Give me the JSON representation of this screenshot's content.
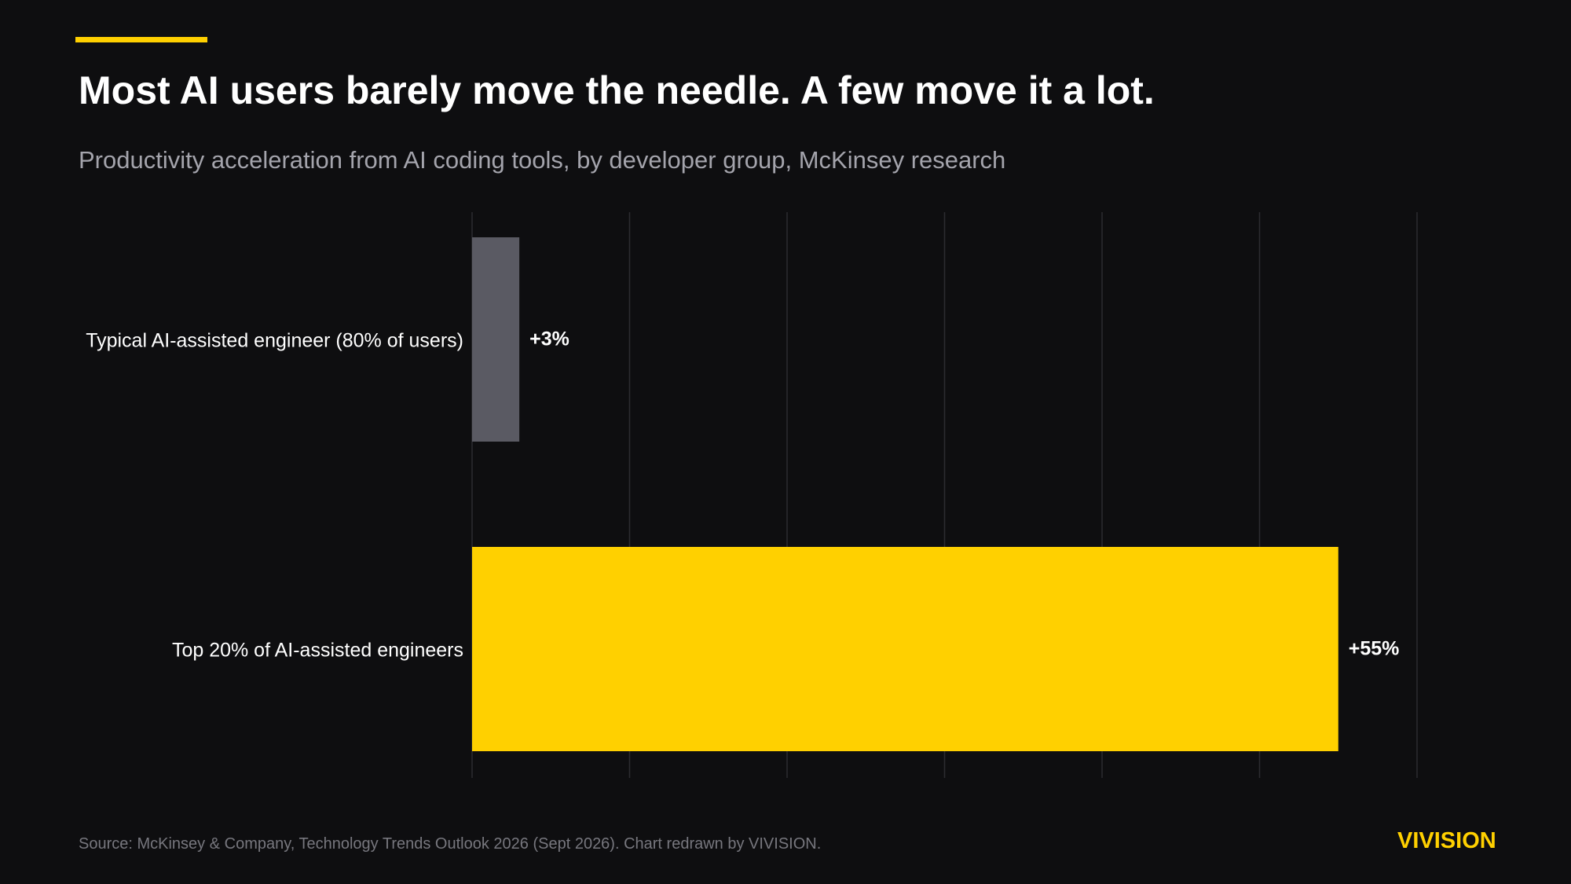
{
  "header": {
    "title": "Most AI users barely move the needle. A few move it a lot.",
    "subtitle": "Productivity acceleration from AI coding tools, by developer group, McKinsey research"
  },
  "footer": {
    "source": "Source: McKinsey & Company, Technology Trends Outlook 2026 (Sept 2026). Chart redrawn by VIVISION.",
    "brand": "VIVISION"
  },
  "colors": {
    "background": "#0e0e10",
    "accent": "#ffd000",
    "muted_bar": "#5a5a63",
    "gridline": "#2c2c31"
  },
  "chart_data": {
    "type": "bar",
    "orientation": "horizontal",
    "title": "Most AI users barely move the needle. A few move it a lot.",
    "subtitle": "Productivity acceleration from AI coding tools, by developer group, McKinsey research",
    "categories": [
      "Typical AI-assisted engineer (80% of users)",
      "Top 20% of AI-assisted engineers"
    ],
    "values": [
      3,
      55
    ],
    "value_labels": [
      "+3%",
      "+55%"
    ],
    "bar_colors": [
      "#5a5a63",
      "#ffd000"
    ],
    "xlim": [
      0,
      60
    ],
    "grid": true,
    "gridline_step": 10,
    "xlabel": "",
    "ylabel": ""
  }
}
